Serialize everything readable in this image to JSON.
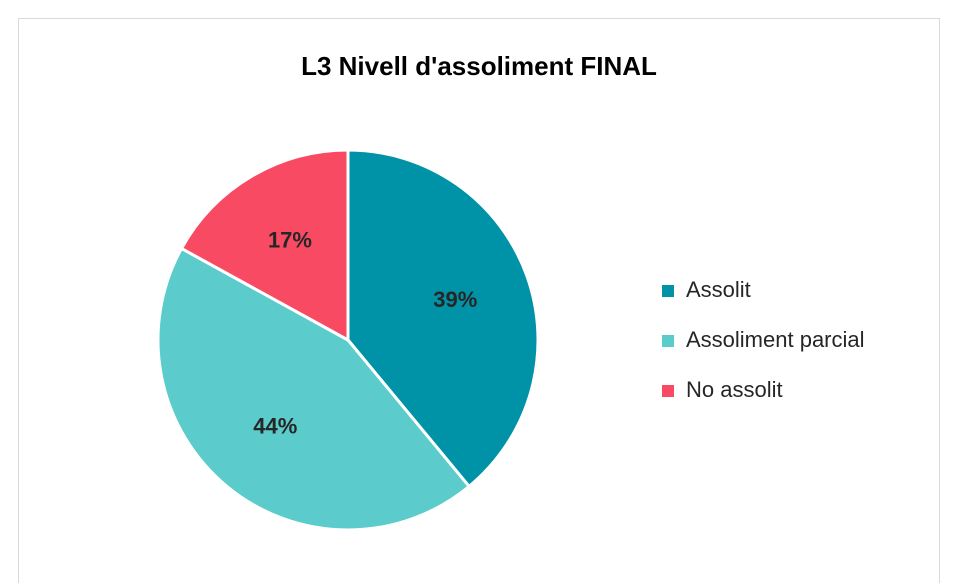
{
  "chart_data": {
    "type": "pie",
    "title": "L3 Nivell d'assoliment FINAL",
    "categories": [
      "Assolit",
      "Assoliment parcial",
      "No assolit"
    ],
    "values": [
      39,
      44,
      17
    ],
    "value_labels": [
      "39%",
      "44%",
      "17%"
    ],
    "colors": [
      "#0093a8",
      "#5bcbcb",
      "#f94a64"
    ],
    "legend": "right"
  }
}
